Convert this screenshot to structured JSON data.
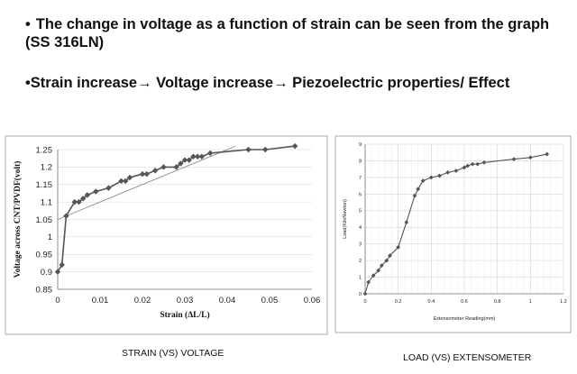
{
  "slide": {
    "bullet1_mark": "•",
    "bullet1": "The change in voltage as a function of strain can be seen from the graph (SS 316LN)",
    "bullet2_mark": "•",
    "bullet2": "Strain increase→ Voltage increase→ Piezoelectric properties/ Effect"
  },
  "captions": {
    "left": "STRAIN (VS) VOLTAGE",
    "right": "LOAD (VS) EXTENSOMETER"
  },
  "chart_data": [
    {
      "type": "line",
      "xlabel": "Strain (ΔL/L)",
      "ylabel": "Voltage across CNT/PVDF(volt)",
      "xlim": [
        0,
        0.06
      ],
      "ylim": [
        0.85,
        1.25
      ],
      "x_ticks": [
        "0",
        "0.01",
        "0.02",
        "0.03",
        "0.04",
        "0.05",
        "0.06"
      ],
      "y_ticks": [
        "0.85",
        "0.9",
        "0.95",
        "1",
        "1.05",
        "1.1",
        "1.15",
        "1.2",
        "1.25"
      ],
      "grid": "horizontal",
      "marker": "diamond",
      "color": "#555555",
      "series": [
        {
          "x": [
            0.0,
            0.001,
            0.002,
            0.004,
            0.005,
            0.006,
            0.007,
            0.009,
            0.012,
            0.015,
            0.016,
            0.017,
            0.02,
            0.021,
            0.023,
            0.025,
            0.028,
            0.029,
            0.03,
            0.031,
            0.032,
            0.033,
            0.034,
            0.036,
            0.045,
            0.049,
            0.056
          ],
          "y": [
            0.9,
            0.92,
            1.06,
            1.1,
            1.1,
            1.11,
            1.12,
            1.13,
            1.14,
            1.16,
            1.16,
            1.17,
            1.18,
            1.18,
            1.19,
            1.2,
            1.2,
            1.21,
            1.22,
            1.22,
            1.23,
            1.23,
            1.23,
            1.24,
            1.25,
            1.25,
            1.26
          ]
        }
      ],
      "trendline": {
        "x": [
          0.0,
          0.042
        ],
        "y": [
          1.05,
          1.26
        ]
      }
    },
    {
      "type": "line",
      "xlabel": "Extensometer Reading(mm)",
      "ylabel": "Load(KiloNewton)",
      "xlim": [
        0,
        1.2
      ],
      "ylim": [
        0,
        9
      ],
      "x_ticks": [
        "0",
        "0.2",
        "0.4",
        "0.6",
        "0.8",
        "1",
        "1.2"
      ],
      "y_ticks": [
        "0",
        "1",
        "2",
        "3",
        "4",
        "5",
        "6",
        "7",
        "8",
        "9"
      ],
      "grid": "both",
      "marker": "diamond",
      "color": "#555555",
      "series": [
        {
          "x": [
            0.0,
            0.02,
            0.05,
            0.08,
            0.1,
            0.13,
            0.15,
            0.2,
            0.25,
            0.3,
            0.32,
            0.35,
            0.4,
            0.45,
            0.5,
            0.55,
            0.6,
            0.62,
            0.65,
            0.68,
            0.72,
            0.9,
            1.0,
            1.1
          ],
          "y": [
            0.0,
            0.7,
            1.1,
            1.4,
            1.7,
            2.0,
            2.3,
            2.8,
            4.3,
            5.9,
            6.3,
            6.8,
            7.0,
            7.1,
            7.3,
            7.4,
            7.6,
            7.7,
            7.8,
            7.8,
            7.9,
            8.1,
            8.2,
            8.4
          ]
        }
      ]
    }
  ]
}
